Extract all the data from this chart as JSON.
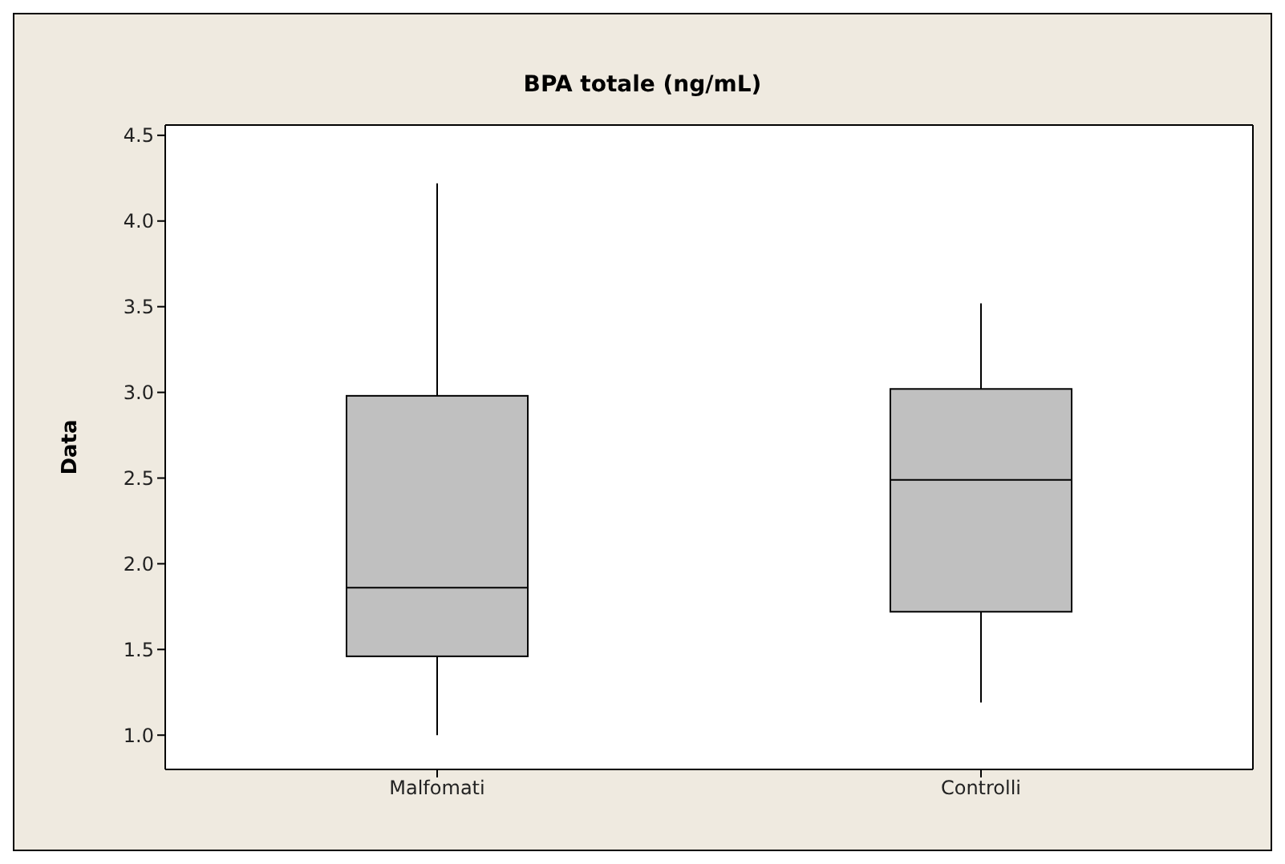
{
  "chart_data": {
    "type": "box",
    "title": "BPA totale (ng/mL)",
    "ylabel": "Data",
    "categories": [
      "Malfomati",
      "Controlli"
    ],
    "boxes": [
      {
        "low": 1.0,
        "q1": 1.46,
        "median": 1.86,
        "q3": 2.98,
        "high": 4.22
      },
      {
        "low": 1.19,
        "q1": 1.72,
        "median": 2.49,
        "q3": 3.02,
        "high": 3.52
      }
    ],
    "color": "#c0c0c0",
    "ylim": [
      0.8,
      4.56
    ],
    "yticks": [
      {
        "value": 1,
        "label": "1.0"
      },
      1.5,
      {
        "value": 2,
        "label": "2.0"
      },
      2.5,
      {
        "value": 3,
        "label": "3.0"
      },
      3.5,
      {
        "value": 4,
        "label": "4.0"
      },
      4.5
    ],
    "grid": false
  }
}
